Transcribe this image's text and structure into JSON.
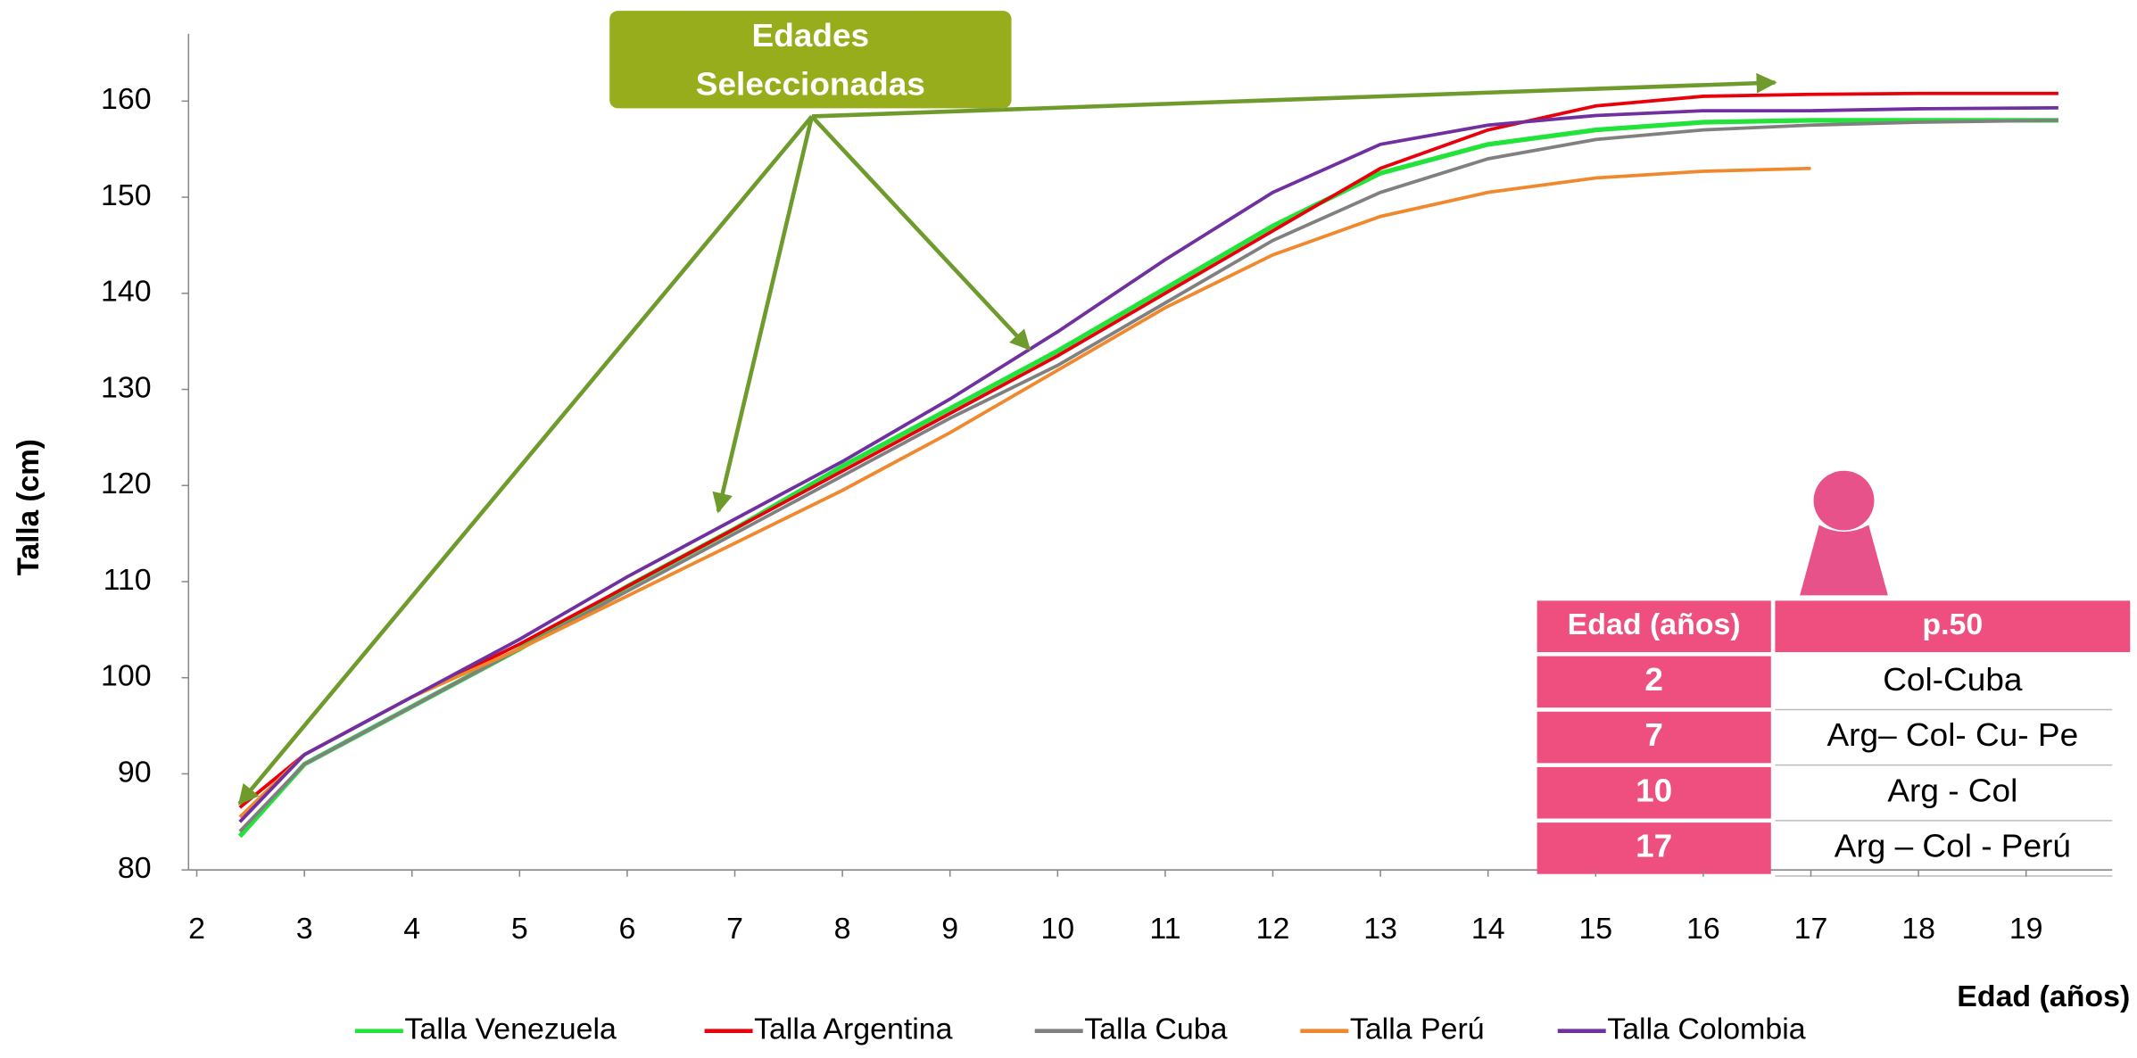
{
  "chart_data": {
    "type": "line",
    "y_label": "Talla (cm)",
    "x_label": "Edad (años)",
    "x": [
      2.4,
      3,
      3.5,
      4,
      5,
      6,
      7,
      8,
      9,
      10,
      11,
      12,
      13,
      14,
      15,
      16,
      17,
      18,
      19.3
    ],
    "xlim": [
      2,
      19.8
    ],
    "xticks": [
      2,
      3,
      4,
      5,
      6,
      7,
      8,
      9,
      10,
      11,
      12,
      13,
      14,
      15,
      16,
      17,
      18,
      19
    ],
    "ylim": [
      80,
      167
    ],
    "yticks": [
      80,
      90,
      100,
      110,
      120,
      130,
      140,
      150,
      160
    ],
    "grid": false,
    "series": [
      {
        "name": "Talla Venezuela",
        "color": "#22e33a",
        "values": [
          83.5,
          91,
          94,
          97,
          103,
          109.5,
          115.5,
          122,
          128,
          134,
          140.5,
          147,
          152.5,
          155.5,
          157,
          157.8,
          158,
          158,
          158
        ]
      },
      {
        "name": "Talla Argentina",
        "color": "#e8000b",
        "values": [
          86.5,
          92,
          95,
          98,
          103.5,
          109.5,
          115.5,
          121.5,
          127.5,
          133.5,
          140,
          146.5,
          153,
          157,
          159.5,
          160.5,
          160.7,
          160.8,
          160.8
        ]
      },
      {
        "name": "Talla Cuba",
        "color": "#808080",
        "values": [
          84,
          91,
          94,
          97,
          103,
          109,
          115,
          121,
          127,
          132.5,
          139,
          145.5,
          150.5,
          154,
          156,
          157,
          157.5,
          157.8,
          158
        ]
      },
      {
        "name": "Talla Perú",
        "color": "#f0882e",
        "values": [
          85.5,
          92,
          95,
          98,
          103,
          108.5,
          114,
          119.5,
          125.5,
          132,
          138.5,
          144,
          148,
          150.5,
          152,
          152.7,
          153,
          null,
          null
        ]
      },
      {
        "name": "Talla Colombia",
        "color": "#7030a0",
        "values": [
          85,
          92,
          95,
          98,
          104,
          110.5,
          116.5,
          122.5,
          129,
          136,
          143.5,
          150.5,
          155.5,
          157.5,
          158.5,
          159,
          159,
          159.2,
          159.3
        ]
      }
    ],
    "annotation": [
      "Edades",
      "Seleccionadas"
    ],
    "table": {
      "header": [
        "Edad (años)",
        "p.50"
      ],
      "rows": [
        [
          "2",
          "Col-Cuba"
        ],
        [
          "7",
          "Arg– Col- Cu- Pe"
        ],
        [
          "10",
          "Arg - Col"
        ],
        [
          "17",
          "Arg – Col - Perú"
        ]
      ]
    }
  }
}
